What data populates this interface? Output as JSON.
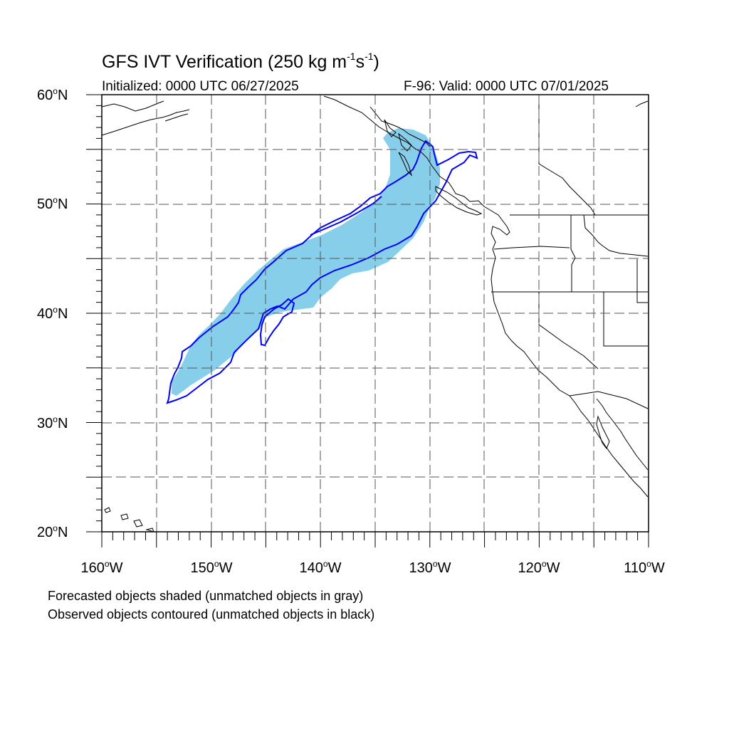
{
  "title": {
    "main": "GFS IVT Verification (250 kg m",
    "exp1": "-1",
    "mid": "s",
    "exp2": "-1",
    "close": ")"
  },
  "subtitle": {
    "left": "Initialized: 0000 UTC 06/27/2025",
    "right": "F-96: Valid: 0000 UTC 07/01/2025"
  },
  "axes": {
    "lat_labels": [
      {
        "num": "60",
        "hem": "N"
      },
      {
        "num": "50",
        "hem": "N"
      },
      {
        "num": "40",
        "hem": "N"
      },
      {
        "num": "30",
        "hem": "N"
      },
      {
        "num": "20",
        "hem": "N"
      }
    ],
    "lon_labels": [
      {
        "num": "160",
        "hem": "W"
      },
      {
        "num": "150",
        "hem": "W"
      },
      {
        "num": "140",
        "hem": "W"
      },
      {
        "num": "130",
        "hem": "W"
      },
      {
        "num": "120",
        "hem": "W"
      },
      {
        "num": "110",
        "hem": "W"
      }
    ],
    "lat_range": [
      20,
      60
    ],
    "lon_range": [
      -160,
      -110
    ],
    "grid_spacing_deg": 5
  },
  "legend": {
    "line1": "Forecasted objects shaded (unmatched objects in gray)",
    "line2": "Observed objects contoured (unmatched objects in black)"
  },
  "colors": {
    "forecast_fill": "#87ceeb",
    "observed_contour": "#0000ff",
    "coastline": "#000000",
    "grid": "#555555"
  }
}
